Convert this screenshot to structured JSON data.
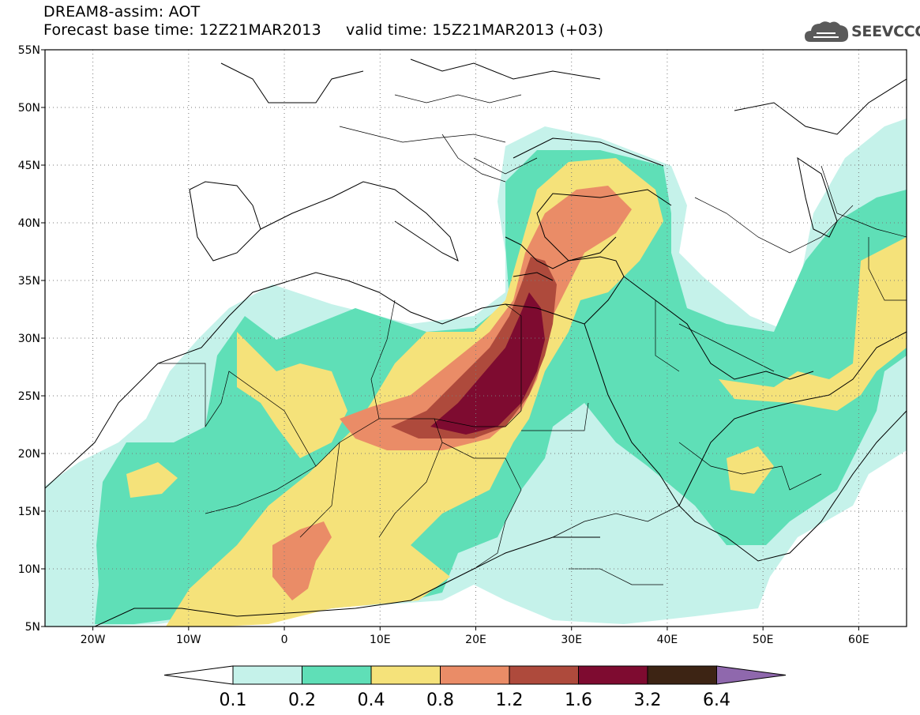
{
  "title": {
    "line1": "DREAM8-assim: AOT",
    "line2": "Forecast base time: 12Z21MAR2013     valid time: 15Z21MAR2013 (+03)"
  },
  "logo": {
    "text": "SEEVCCC",
    "icon": "cloud-icon"
  },
  "map": {
    "lon_range": [
      -25,
      65
    ],
    "lat_range": [
      5,
      55
    ],
    "grid": "dotted",
    "lat_labels": [
      "5N",
      "10N",
      "15N",
      "20N",
      "25N",
      "30N",
      "35N",
      "40N",
      "45N",
      "50N",
      "55N"
    ],
    "lon_labels": [
      "20W",
      "10W",
      "0",
      "10E",
      "20E",
      "30E",
      "40E",
      "50E",
      "60E"
    ]
  },
  "colorbar": {
    "levels": [
      "0.1",
      "0.2",
      "0.4",
      "0.8",
      "1.2",
      "1.6",
      "3.2",
      "6.4"
    ],
    "colors": [
      "#ffffff",
      "#c5f2ea",
      "#5fdfb7",
      "#f5e27a",
      "#ea8c67",
      "#ae4a3c",
      "#7e0b30",
      "#3d2414",
      "#8f68ad"
    ]
  }
}
